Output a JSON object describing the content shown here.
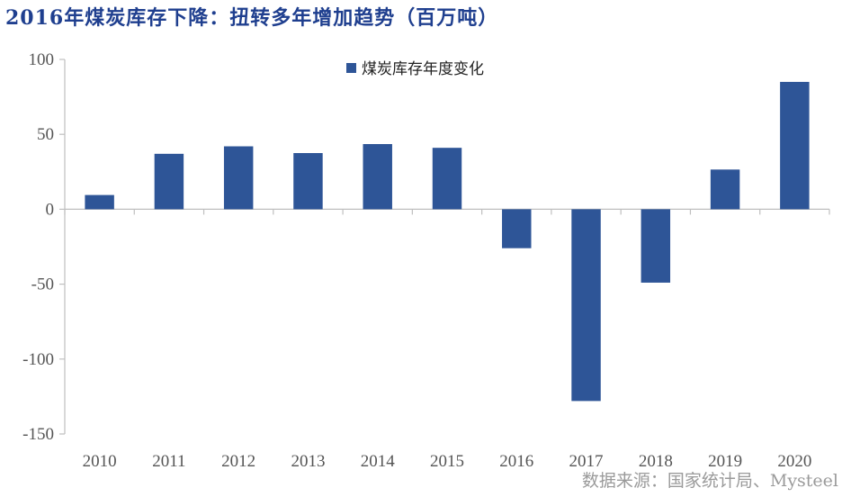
{
  "title": "2016年煤炭库存下降：扭转多年增加趋势（百万吨）",
  "source": "数据来源：国家统计局、Mysteel",
  "colors": {
    "bar": "#2e5597",
    "title": "#1f3f8f",
    "axis": "#bfbfbf"
  },
  "chart_data": {
    "type": "bar",
    "title": "2016年煤炭库存下降：扭转多年增加趋势（百万吨）",
    "categories": [
      "2010",
      "2011",
      "2012",
      "2013",
      "2014",
      "2015",
      "2016",
      "2017",
      "2018",
      "2019",
      "2020"
    ],
    "series": [
      {
        "name": "煤炭库存年度变化",
        "values": [
          9.5,
          37,
          42,
          37.5,
          43.5,
          41,
          -26,
          -128,
          -49,
          26.5,
          85
        ]
      }
    ],
    "ylim": [
      -150,
      100
    ],
    "yticks": [
      100,
      50,
      0,
      -50,
      -100,
      -150
    ],
    "xlabel": "",
    "ylabel": "",
    "grid": false,
    "legend": "top-center"
  }
}
